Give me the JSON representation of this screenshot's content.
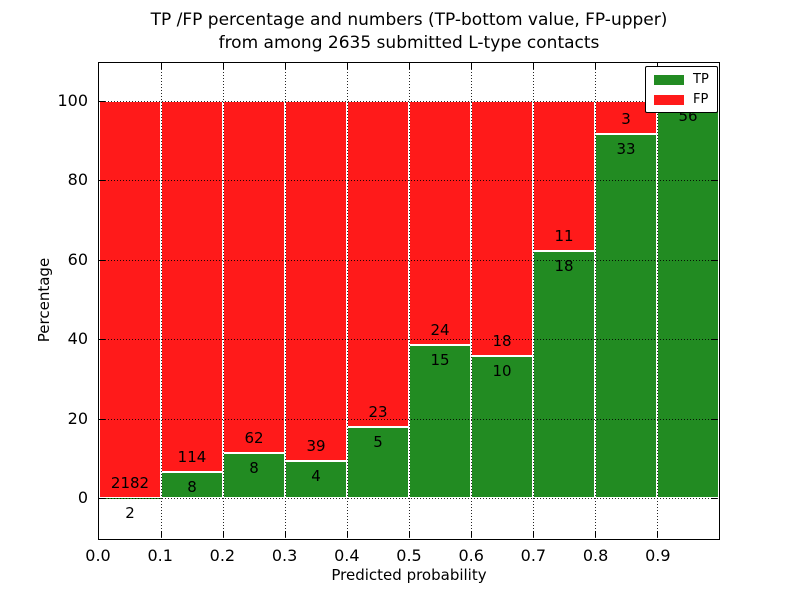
{
  "title": {
    "line1": "TP /FP percentage and numbers (TP-bottom value, FP-upper)",
    "line2": "from among 2635 submitted L-type contacts"
  },
  "axes": {
    "xlabel": "Predicted probability",
    "ylabel": "Percentage"
  },
  "legend": {
    "entries": [
      {
        "label": "TP",
        "color": "#228B22"
      },
      {
        "label": "FP",
        "color": "#FF1A1A"
      }
    ]
  },
  "chart_data": {
    "type": "bar",
    "stacked": true,
    "normalized_to_percent": true,
    "title": "TP /FP percentage and numbers (TP-bottom value, FP-upper) from among 2635 submitted L-type contacts",
    "xlabel": "Predicted probability",
    "ylabel": "Percentage",
    "xlim": [
      0.0,
      1.0
    ],
    "ylim": [
      -10,
      110
    ],
    "grid": "dotted",
    "legend_position": "upper right",
    "x_ticks": [
      "0.0",
      "0.1",
      "0.2",
      "0.3",
      "0.4",
      "0.5",
      "0.6",
      "0.7",
      "0.8",
      "0.9"
    ],
    "y_ticks": [
      "0",
      "20",
      "40",
      "60",
      "80",
      "100"
    ],
    "bin_width": 0.1,
    "total_submitted": 2635,
    "series": [
      {
        "name": "TP",
        "color": "#228B22",
        "position": "bottom"
      },
      {
        "name": "FP",
        "color": "#FF1A1A",
        "position": "top"
      }
    ],
    "bins": [
      {
        "range": "0.0-0.1",
        "tp": 2,
        "fp": 2182
      },
      {
        "range": "0.1-0.2",
        "tp": 8,
        "fp": 114
      },
      {
        "range": "0.2-0.3",
        "tp": 8,
        "fp": 62
      },
      {
        "range": "0.3-0.4",
        "tp": 4,
        "fp": 39
      },
      {
        "range": "0.4-0.5",
        "tp": 5,
        "fp": 23
      },
      {
        "range": "0.5-0.6",
        "tp": 15,
        "fp": 24
      },
      {
        "range": "0.6-0.7",
        "tp": 10,
        "fp": 18
      },
      {
        "range": "0.7-0.8",
        "tp": 18,
        "fp": 11
      },
      {
        "range": "0.8-0.9",
        "tp": 33,
        "fp": 3
      },
      {
        "range": "0.9-1.0",
        "tp": 56,
        "fp": 0
      }
    ]
  },
  "colors": {
    "tp": "#228B22",
    "fp": "#FF1A1A",
    "bar_edge": "#FFFFFF",
    "grid": "#000000",
    "text": "#000000",
    "background": "#FFFFFF"
  }
}
